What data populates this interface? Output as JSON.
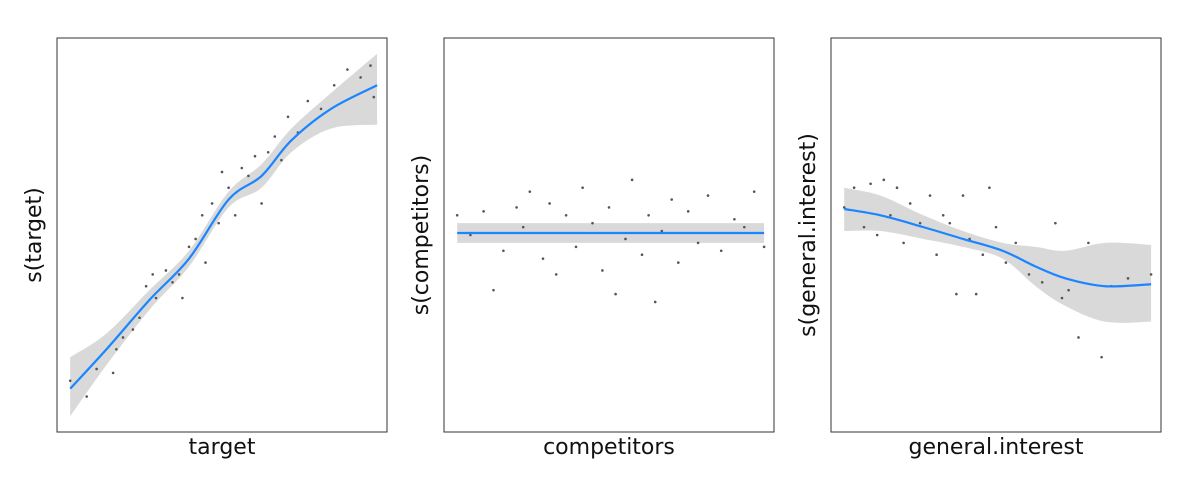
{
  "chart_data": [
    {
      "type": "line",
      "xlabel": "target",
      "ylabel": "s(target)",
      "xlim": [
        0,
        100
      ],
      "ylim": [
        0,
        100
      ],
      "color": "#1a85ff",
      "band_color": "#d9d9d9",
      "point_color": "#555555",
      "x": [
        4,
        15,
        28,
        40,
        52,
        62,
        71,
        83,
        97
      ],
      "values": [
        11,
        21,
        33.5,
        44,
        59,
        65,
        74,
        82,
        88
      ],
      "lower": [
        4,
        17,
        31,
        42,
        57,
        62,
        71,
        77,
        78
      ],
      "upper": [
        19,
        25,
        36,
        46,
        61,
        68,
        77,
        86,
        96
      ],
      "points": {
        "x": [
          4,
          9,
          12,
          17,
          18,
          20,
          23,
          25,
          27,
          29,
          30,
          33,
          35,
          37,
          38,
          40,
          42,
          44,
          45,
          47,
          49,
          50,
          52,
          54,
          56,
          58,
          60,
          62,
          64,
          66,
          68,
          70,
          73,
          76,
          80,
          84,
          88,
          92,
          96,
          95
        ],
        "y": [
          13,
          9,
          16,
          15,
          21,
          24,
          26,
          29,
          37,
          40,
          34,
          41,
          38,
          40,
          34,
          47,
          49,
          55,
          43,
          58,
          53,
          66,
          62,
          55,
          67,
          65,
          70,
          58,
          71,
          75,
          69,
          80,
          76,
          84,
          82,
          88,
          92,
          90,
          85,
          93
        ]
      }
    },
    {
      "type": "line",
      "xlabel": "competitors",
      "ylabel": "s(competitors)",
      "xlim": [
        0,
        100
      ],
      "ylim": [
        0,
        100
      ],
      "color": "#1a85ff",
      "band_color": "#d9d9d9",
      "point_color": "#555555",
      "x": [
        4,
        97
      ],
      "values": [
        50.5,
        50.5
      ],
      "lower": [
        48,
        48
      ],
      "upper": [
        53,
        53
      ],
      "points": {
        "x": [
          4,
          8,
          12,
          15,
          18,
          22,
          24,
          26,
          30,
          32,
          34,
          37,
          40,
          42,
          45,
          48,
          50,
          52,
          55,
          57,
          60,
          62,
          64,
          66,
          69,
          71,
          74,
          77,
          80,
          84,
          88,
          91,
          94,
          97
        ],
        "y": [
          55,
          50,
          56,
          36,
          46,
          57,
          52,
          61,
          44,
          58,
          40,
          55,
          47,
          62,
          53,
          41,
          57,
          35,
          49,
          64,
          45,
          55,
          33,
          51,
          59,
          43,
          56,
          48,
          60,
          46,
          54,
          52,
          61,
          47
        ]
      }
    },
    {
      "type": "line",
      "xlabel": "general.interest",
      "ylabel": "s(general.interest)",
      "xlim": [
        0,
        100
      ],
      "ylim": [
        0,
        100
      ],
      "color": "#1a85ff",
      "band_color": "#d9d9d9",
      "point_color": "#555555",
      "x": [
        4,
        15,
        28,
        40,
        52,
        62,
        71,
        83,
        97
      ],
      "values": [
        56.6,
        55,
        52,
        49,
        46,
        42,
        39,
        37,
        37.5
      ],
      "lower": [
        51,
        51,
        49,
        47,
        44,
        37,
        32,
        28,
        28
      ],
      "upper": [
        62,
        60,
        55,
        51,
        48,
        47,
        46,
        48,
        47.5
      ],
      "points": {
        "x": [
          4,
          7,
          10,
          12,
          14,
          16,
          18,
          20,
          22,
          24,
          27,
          30,
          32,
          34,
          36,
          38,
          40,
          42,
          44,
          46,
          48,
          50,
          53,
          56,
          60,
          64,
          68,
          70,
          72,
          75,
          78,
          82,
          85,
          90,
          97
        ],
        "y": [
          57,
          62,
          52,
          63,
          50,
          64,
          55,
          62,
          48,
          58,
          53,
          60,
          45,
          55,
          53,
          35,
          60,
          49,
          35,
          45,
          62,
          52,
          43,
          48,
          40,
          38,
          53,
          34,
          36,
          24,
          48,
          19,
          37,
          39,
          40
        ]
      }
    }
  ]
}
